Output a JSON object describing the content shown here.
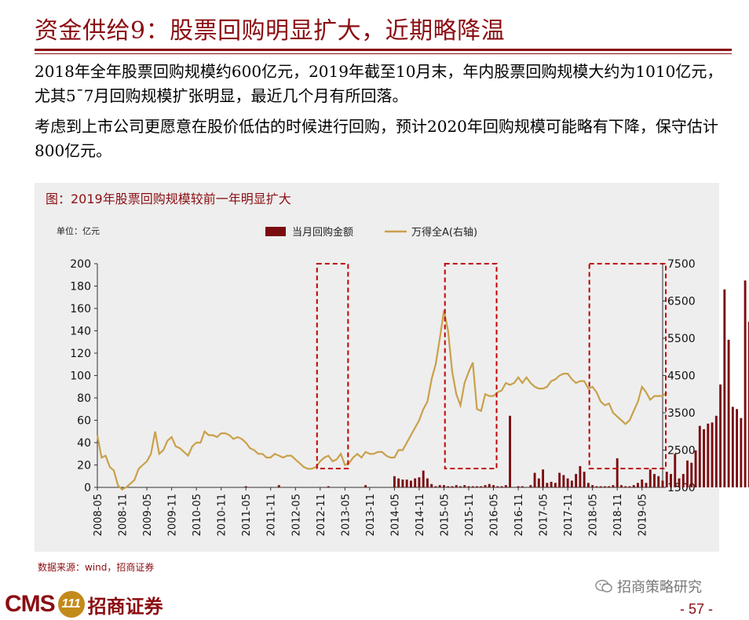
{
  "slide": {
    "title": "资金供给9：股票回购明显扩大，近期略降温",
    "paragraph1": "2018年全年股票回购规模约600亿元，2019年截至10月末，年内股票回购规模大约为1010亿元，尤其5¯7月回购规模扩张明显，最近几个月有所回落。",
    "paragraph2": "考虑到上市公司更愿意在股价低估的时候进行回购，预计2020年回购规模可能略有下降，保守估计800亿元。",
    "source": "数据来源：wind，招商证券",
    "page_number": "- 57 -"
  },
  "footer": {
    "logo_cms": "CMS",
    "logo_badge": "111",
    "logo_name": "招商证券",
    "wechat_label": "招商策略研究"
  },
  "colors": {
    "brand": "#8b0d12",
    "bar": "#7a0c10",
    "line": "#c9a04a",
    "highlight_box": "#c00000"
  },
  "chart_data": {
    "type": "bar",
    "title": "图：2019年股票回购规模较前一年明显扩大",
    "unit_label": "单位：亿元",
    "legend": [
      "当月回购金额",
      "万得全A(右轴)"
    ],
    "legend_position": "top",
    "x_tick_labels": [
      "2008-05",
      "2008-11",
      "2009-05",
      "2009-11",
      "2010-05",
      "2010-11",
      "2011-05",
      "2011-11",
      "2012-05",
      "2012-11",
      "2013-05",
      "2013-11",
      "2014-05",
      "2014-11",
      "2015-05",
      "2015-11",
      "2016-05",
      "2016-11",
      "2017-05",
      "2017-11",
      "2018-05",
      "2018-11",
      "2019-05"
    ],
    "x_range": [
      "2008-05",
      "2019-10"
    ],
    "y_left": {
      "min": 0,
      "max": 200,
      "ticks": [
        0,
        20,
        40,
        60,
        80,
        100,
        120,
        140,
        160,
        180,
        200
      ]
    },
    "y_right": {
      "min": 1500,
      "max": 7500,
      "ticks": [
        1500,
        2500,
        3500,
        4500,
        5500,
        6500,
        7500
      ]
    },
    "grid": false,
    "series": [
      {
        "name": "当月回购金额",
        "type": "bar",
        "axis": "left",
        "start": "2008-05",
        "values": [
          0,
          0,
          0,
          0,
          0,
          0,
          0,
          0,
          0,
          0,
          0,
          0,
          0,
          0,
          0,
          0,
          0,
          0,
          0,
          0,
          0,
          0,
          0,
          0,
          0,
          0,
          0,
          0,
          0,
          0,
          0,
          0,
          0,
          0,
          0,
          0,
          1,
          0,
          0,
          0,
          0,
          0,
          0,
          0,
          2,
          0,
          0,
          0,
          0,
          0,
          0,
          0,
          0,
          0,
          0,
          0,
          1,
          0,
          0,
          0,
          0,
          0,
          0,
          0,
          0,
          2,
          0,
          0,
          0,
          0,
          0,
          0,
          10,
          8,
          7,
          7,
          6,
          8,
          9,
          15,
          8,
          3,
          1,
          2,
          2,
          1,
          1,
          2,
          1,
          2,
          1,
          1,
          1,
          1,
          2,
          3,
          2,
          1,
          1,
          2,
          64,
          0,
          1,
          1,
          0,
          2,
          13,
          8,
          16,
          4,
          5,
          4,
          13,
          11,
          8,
          6,
          12,
          19,
          14,
          4,
          2,
          1,
          1,
          1,
          1,
          2,
          26,
          2,
          1,
          1,
          2,
          4,
          7,
          4,
          16,
          12,
          10,
          6,
          14,
          12,
          30,
          8,
          12,
          24,
          22,
          33,
          55,
          52,
          57,
          58,
          64,
          92,
          177,
          132,
          72,
          70,
          62,
          185,
          148,
          183,
          73,
          61
        ]
      },
      {
        "name": "万得全A(右轴)",
        "type": "line",
        "axis": "right",
        "start": "2008-05",
        "values": [
          2900,
          2300,
          2350,
          2050,
          1950,
          1550,
          1450,
          1500,
          1600,
          1700,
          2000,
          2100,
          2200,
          2400,
          3000,
          2400,
          2500,
          2750,
          2850,
          2600,
          2550,
          2450,
          2350,
          2600,
          2700,
          2700,
          3000,
          2900,
          2900,
          2850,
          2950,
          2950,
          2900,
          2800,
          2850,
          2800,
          2700,
          2550,
          2500,
          2400,
          2400,
          2300,
          2300,
          2400,
          2350,
          2300,
          2350,
          2350,
          2250,
          2150,
          2050,
          2000,
          2000,
          2050,
          2200,
          2300,
          2350,
          2200,
          2250,
          2400,
          2100,
          2150,
          2300,
          2400,
          2300,
          2450,
          2400,
          2400,
          2450,
          2450,
          2350,
          2300,
          2300,
          2500,
          2500,
          2700,
          2900,
          3100,
          3300,
          3600,
          3800,
          4400,
          4800,
          5500,
          6250,
          5700,
          4600,
          4000,
          3700,
          4300,
          4600,
          4850,
          3600,
          3550,
          4000,
          3950,
          3950,
          4050,
          4100,
          4300,
          4250,
          4300,
          4450,
          4300,
          4450,
          4300,
          4200,
          4150,
          4150,
          4200,
          4350,
          4400,
          4500,
          4550,
          4550,
          4400,
          4300,
          4350,
          4350,
          4150,
          4200,
          4050,
          3800,
          3700,
          3750,
          3500,
          3400,
          3300,
          3200,
          3300,
          3550,
          3800,
          4200,
          4050,
          3850,
          3950,
          3950,
          3950,
          4050
        ]
      }
    ],
    "highlight_boxes": [
      {
        "start": "2012-11",
        "end": "2013-05",
        "ymax": 200
      },
      {
        "start": "2015-06",
        "end": "2016-05",
        "ymax": 200
      },
      {
        "start": "2018-05",
        "end": "2019-10",
        "ymax": 200
      }
    ]
  }
}
